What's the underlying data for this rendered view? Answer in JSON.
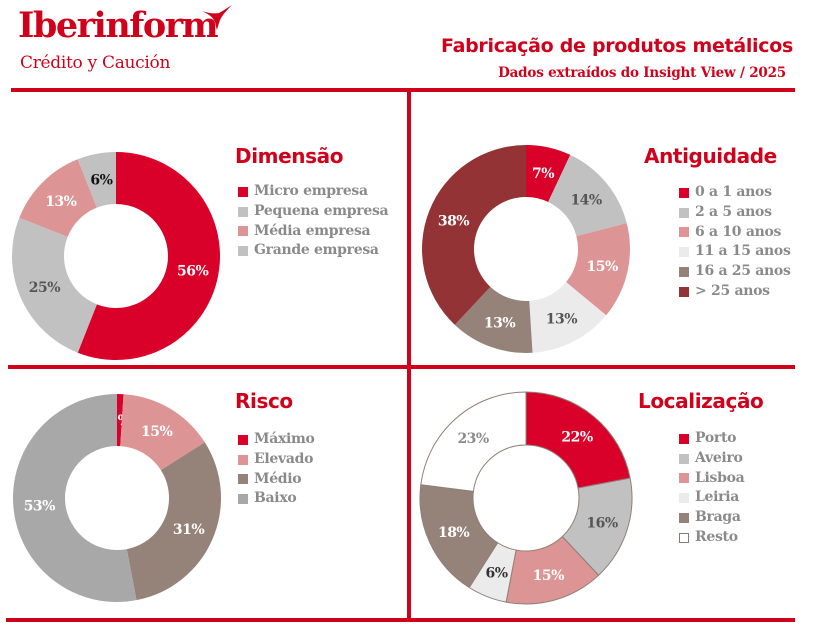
{
  "header": {
    "brand_name": "Iberinform",
    "brand_tagline": "Crédito y Caución",
    "title": "Fabricação de produtos metálicos",
    "subtitle": "Dados extraídos do Insight View / 2025"
  },
  "colors": {
    "brand_red": "#d0021b"
  },
  "chart_data": [
    {
      "type": "pie",
      "variant": "donut",
      "title": "Dimensão",
      "legend_position": "right",
      "categories": [
        "Micro empresa",
        "Pequena empresa",
        "Média empresa",
        "Grande empresa"
      ],
      "values": [
        56,
        25,
        13,
        6
      ],
      "labels": [
        "56%",
        "25%",
        "13%",
        "6%"
      ],
      "colors": [
        "#d9002a",
        "#c1c1c1",
        "#dc9594",
        "#c1c1c1"
      ],
      "label_colors": [
        "#ffffff",
        "#555555",
        "#ffffff",
        "#111111"
      ],
      "legend_colors": [
        "#d9002a",
        "#c1c1c1",
        "#dc9594",
        "#c1c1c1"
      ]
    },
    {
      "type": "pie",
      "variant": "donut",
      "title": "Antiguidade",
      "legend_position": "right",
      "categories": [
        "0 a 1 anos",
        "2 a 5 anos",
        "6 a 10 anos",
        "11 a 15 anos",
        "16 a 25 anos",
        "> 25 anos"
      ],
      "values": [
        7,
        14,
        15,
        13,
        13,
        38
      ],
      "labels": [
        "7%",
        "14%",
        "15%",
        "13%",
        "13%",
        "38%"
      ],
      "colors": [
        "#d9002a",
        "#c1c1c1",
        "#dc9594",
        "#ebebeb",
        "#958279",
        "#943335"
      ],
      "label_colors": [
        "#ffffff",
        "#555555",
        "#ffffff",
        "#555555",
        "#ffffff",
        "#ffffff"
      ],
      "legend_colors": [
        "#d9002a",
        "#c1c1c1",
        "#dc9594",
        "#ebebeb",
        "#958279",
        "#943335"
      ]
    },
    {
      "type": "pie",
      "variant": "donut",
      "title": "Risco",
      "legend_position": "right",
      "categories": [
        "Máximo",
        "Elevado",
        "Médio",
        "Baixo"
      ],
      "values": [
        1,
        15,
        31,
        53
      ],
      "labels": [
        "1%",
        "15%",
        "31%",
        "53%"
      ],
      "colors": [
        "#d9002a",
        "#dc9594",
        "#958279",
        "#a8a8a8"
      ],
      "label_colors": [
        "#ffffff",
        "#ffffff",
        "#ffffff",
        "#ffffff"
      ],
      "legend_colors": [
        "#d9002a",
        "#dc9594",
        "#958279",
        "#a8a8a8"
      ]
    },
    {
      "type": "pie",
      "variant": "donut",
      "title": "Localização",
      "legend_position": "right",
      "categories": [
        "Porto",
        "Aveiro",
        "Lisboa",
        "Leiria",
        "Braga",
        "Resto"
      ],
      "values": [
        22,
        16,
        15,
        6,
        18,
        23
      ],
      "labels": [
        "22%",
        "16%",
        "15%",
        "6%",
        "18%",
        "23%"
      ],
      "colors": [
        "#d9002a",
        "#c1c1c1",
        "#dc9594",
        "#ebebeb",
        "#958279",
        "#ffffff"
      ],
      "label_colors": [
        "#ffffff",
        "#555555",
        "#ffffff",
        "#333333",
        "#ffffff",
        "#8a8a8a"
      ],
      "legend_colors": [
        "#d9002a",
        "#c1c1c1",
        "#dc9594",
        "#ebebeb",
        "#958279",
        "#ffffff"
      ]
    }
  ]
}
